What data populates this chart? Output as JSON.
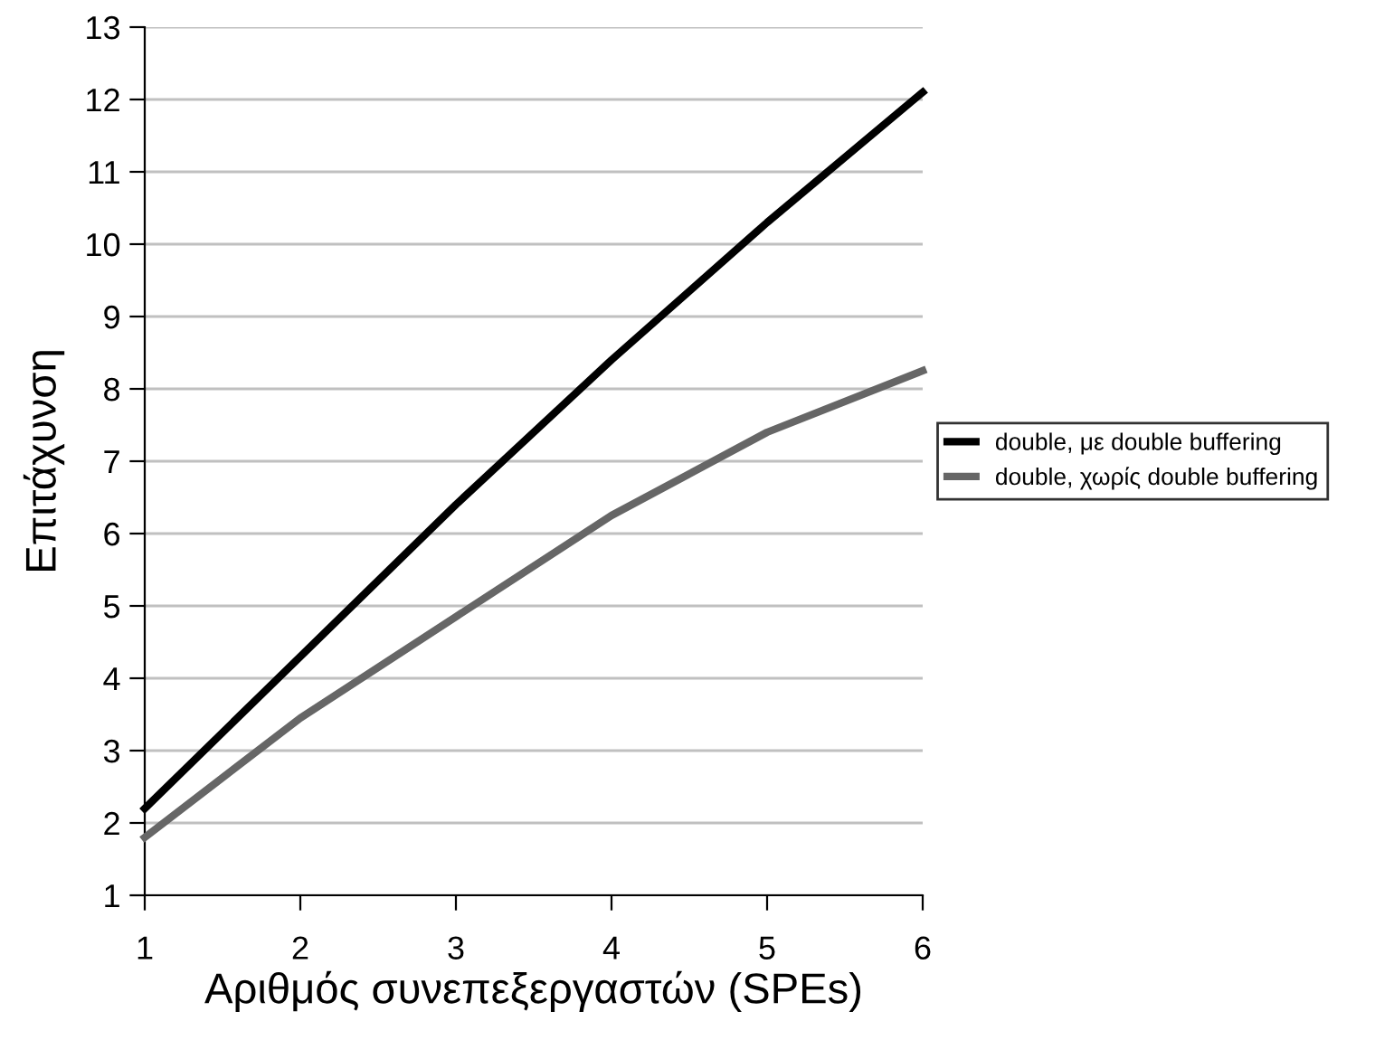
{
  "chart_data": {
    "type": "line",
    "xlabel": "Αριθμός συνεπεξεργαστών (SPEs)",
    "ylabel": "Επιτάχυνση",
    "x": [
      1,
      2,
      3,
      4,
      5,
      6
    ],
    "series": [
      {
        "name": "double, με double buffering",
        "color": "#000000",
        "values": [
          2.2,
          4.3,
          6.4,
          8.4,
          10.3,
          12.1
        ]
      },
      {
        "name": "double, χωρίς double buffering",
        "color": "#666666",
        "values": [
          1.8,
          3.45,
          4.85,
          6.25,
          7.4,
          8.25
        ]
      }
    ],
    "xlim": [
      1,
      6
    ],
    "xticks": [
      1,
      2,
      3,
      4,
      5,
      6
    ],
    "ylim": [
      1,
      13
    ],
    "yticks": [
      1,
      2,
      3,
      4,
      5,
      6,
      7,
      8,
      9,
      10,
      11,
      12,
      13
    ],
    "grid": "y",
    "legend": "right",
    "marker": "none",
    "line_style": "solid"
  }
}
